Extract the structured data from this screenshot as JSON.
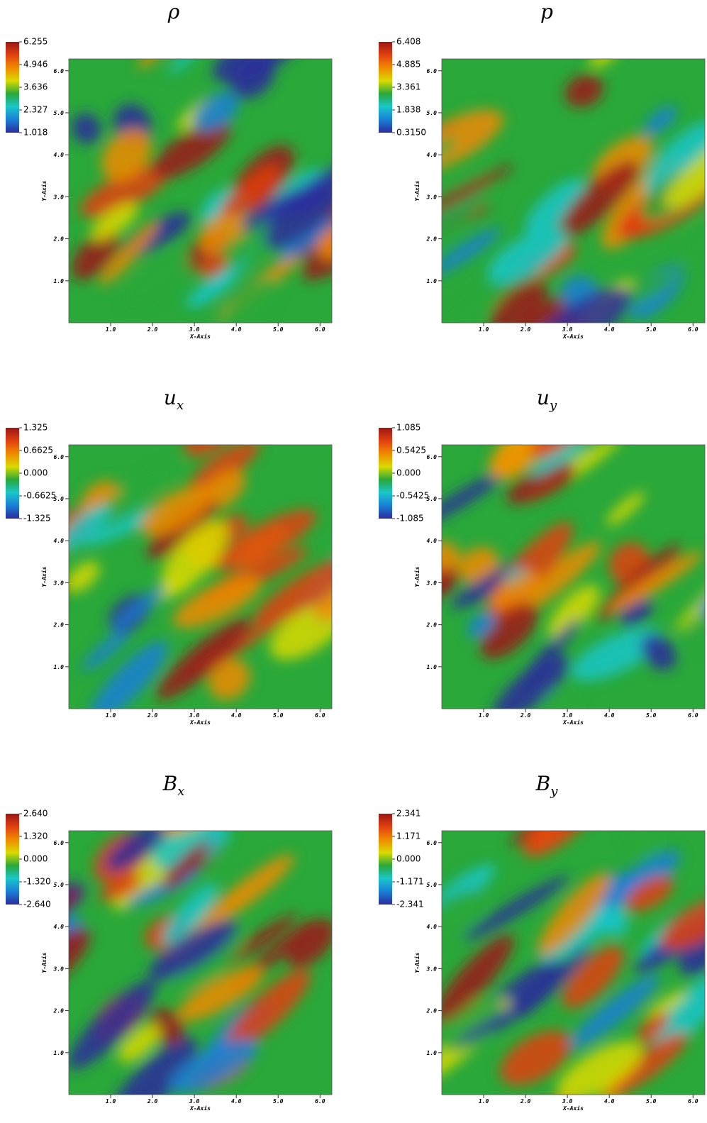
{
  "chart_data": [
    {
      "type": "heatmap",
      "title": "ρ",
      "colorbar": {
        "clim": [
          1.018,
          6.255
        ],
        "ticks": [
          6.255,
          4.946,
          3.636,
          2.327,
          1.018
        ]
      },
      "xlabel": "X-Axis",
      "ylabel": "Y-Axis",
      "xlim": [
        0,
        6.283
      ],
      "ylim": [
        0,
        6.283
      ],
      "xticks": [
        {
          "value": 1,
          "label": "1.0"
        },
        {
          "value": 2,
          "label": "2.0"
        },
        {
          "value": 3,
          "label": "3.0"
        },
        {
          "value": 4,
          "label": "4.0"
        },
        {
          "value": 5,
          "label": "5.0"
        },
        {
          "value": 6,
          "label": "6.0"
        }
      ],
      "yticks": [
        {
          "value": 1,
          "label": "1.0"
        },
        {
          "value": 2,
          "label": "2.0"
        },
        {
          "value": 3,
          "label": "3.0"
        },
        {
          "value": 4,
          "label": "4.0"
        },
        {
          "value": 5,
          "label": "5.0"
        },
        {
          "value": 6,
          "label": "6.0"
        }
      ],
      "colormap": [
        "#2c2c9c",
        "#1a7fd6",
        "#19c6c9",
        "#2aa83a",
        "#d9d900",
        "#f08a00",
        "#e04010",
        "#9c1616"
      ]
    },
    {
      "type": "heatmap",
      "title": "p",
      "colorbar": {
        "clim": [
          0.315,
          6.408
        ],
        "ticks": [
          6.408,
          4.885,
          3.361,
          1.838,
          {
            "value": 0.315,
            "label": "0.3150"
          }
        ]
      },
      "xlabel": "X-Axis",
      "ylabel": "Y-Axis",
      "xlim": [
        0,
        6.283
      ],
      "ylim": [
        0,
        6.283
      ],
      "xticks": [
        {
          "value": 1,
          "label": "1.0"
        },
        {
          "value": 2,
          "label": "2.0"
        },
        {
          "value": 3,
          "label": "3.0"
        },
        {
          "value": 4,
          "label": "4.0"
        },
        {
          "value": 5,
          "label": "5.0"
        },
        {
          "value": 6,
          "label": "6.0"
        }
      ],
      "yticks": [
        {
          "value": 1,
          "label": "1.0"
        },
        {
          "value": 2,
          "label": "2.0"
        },
        {
          "value": 3,
          "label": "3.0"
        },
        {
          "value": 4,
          "label": "4.0"
        },
        {
          "value": 5,
          "label": "5.0"
        },
        {
          "value": 6,
          "label": "6.0"
        }
      ],
      "colormap": [
        "#2c2c9c",
        "#1a7fd6",
        "#19c6c9",
        "#2aa83a",
        "#d9d900",
        "#f08a00",
        "#e04010",
        "#9c1616"
      ]
    },
    {
      "type": "heatmap",
      "title": "u",
      "title_subscript": "x",
      "colorbar": {
        "clim": [
          -1.325,
          1.325
        ],
        "ticks": [
          1.325,
          0.6625,
          {
            "value": 0,
            "label": "0.000"
          },
          -0.6625,
          -1.325
        ]
      },
      "xlabel": "X-Axis",
      "ylabel": "Y-Axis",
      "xlim": [
        0,
        6.283
      ],
      "ylim": [
        0,
        6.283
      ],
      "xticks": [
        {
          "value": 1,
          "label": "1.0"
        },
        {
          "value": 2,
          "label": "2.0"
        },
        {
          "value": 3,
          "label": "3.0"
        },
        {
          "value": 4,
          "label": "4.0"
        },
        {
          "value": 5,
          "label": "5.0"
        },
        {
          "value": 6,
          "label": "6.0"
        }
      ],
      "yticks": [
        {
          "value": 1,
          "label": "1.0"
        },
        {
          "value": 2,
          "label": "2.0"
        },
        {
          "value": 3,
          "label": "3.0"
        },
        {
          "value": 4,
          "label": "4.0"
        },
        {
          "value": 5,
          "label": "5.0"
        },
        {
          "value": 6,
          "label": "6.0"
        }
      ],
      "colormap": [
        "#2c2c9c",
        "#1a7fd6",
        "#19c6c9",
        "#2aa83a",
        "#d9d900",
        "#f08a00",
        "#e04010",
        "#9c1616"
      ]
    },
    {
      "type": "heatmap",
      "title": "u",
      "title_subscript": "y",
      "colorbar": {
        "clim": [
          -1.085,
          1.085
        ],
        "ticks": [
          1.085,
          0.5425,
          {
            "value": 0,
            "label": "0.000"
          },
          -0.5425,
          -1.085
        ]
      },
      "xlabel": "X-Axis",
      "ylabel": "Y-Axis",
      "xlim": [
        0,
        6.283
      ],
      "ylim": [
        0,
        6.283
      ],
      "xticks": [
        {
          "value": 1,
          "label": "1.0"
        },
        {
          "value": 2,
          "label": "2.0"
        },
        {
          "value": 3,
          "label": "3.0"
        },
        {
          "value": 4,
          "label": "4.0"
        },
        {
          "value": 5,
          "label": "5.0"
        },
        {
          "value": 6,
          "label": "6.0"
        }
      ],
      "yticks": [
        {
          "value": 1,
          "label": "1.0"
        },
        {
          "value": 2,
          "label": "2.0"
        },
        {
          "value": 3,
          "label": "3.0"
        },
        {
          "value": 4,
          "label": "4.0"
        },
        {
          "value": 5,
          "label": "5.0"
        },
        {
          "value": 6,
          "label": "6.0"
        }
      ],
      "colormap": [
        "#2c2c9c",
        "#1a7fd6",
        "#19c6c9",
        "#2aa83a",
        "#d9d900",
        "#f08a00",
        "#e04010",
        "#9c1616"
      ]
    },
    {
      "type": "heatmap",
      "title": "B",
      "title_subscript": "x",
      "colorbar": {
        "clim": [
          -2.64,
          2.64
        ],
        "ticks": [
          {
            "value": 2.64,
            "label": "2.640"
          },
          {
            "value": 1.32,
            "label": "1.320"
          },
          {
            "value": 0,
            "label": "0.000"
          },
          {
            "value": -1.32,
            "label": "-1.320"
          },
          {
            "value": -2.64,
            "label": "-2.640"
          }
        ]
      },
      "xlabel": "X-Axis",
      "ylabel": "Y-Axis",
      "xlim": [
        0,
        6.283
      ],
      "ylim": [
        0,
        6.283
      ],
      "xticks": [
        {
          "value": 1,
          "label": "1.0"
        },
        {
          "value": 2,
          "label": "2.0"
        },
        {
          "value": 3,
          "label": "3.0"
        },
        {
          "value": 4,
          "label": "4.0"
        },
        {
          "value": 5,
          "label": "5.0"
        },
        {
          "value": 6,
          "label": "6.0"
        }
      ],
      "yticks": [
        {
          "value": 1,
          "label": "1.0"
        },
        {
          "value": 2,
          "label": "2.0"
        },
        {
          "value": 3,
          "label": "3.0"
        },
        {
          "value": 4,
          "label": "4.0"
        },
        {
          "value": 5,
          "label": "5.0"
        },
        {
          "value": 6,
          "label": "6.0"
        }
      ],
      "colormap": [
        "#2c2c9c",
        "#1a7fd6",
        "#19c6c9",
        "#2aa83a",
        "#d9d900",
        "#f08a00",
        "#e04010",
        "#9c1616"
      ]
    },
    {
      "type": "heatmap",
      "title": "B",
      "title_subscript": "y",
      "colorbar": {
        "clim": [
          -2.341,
          2.341
        ],
        "ticks": [
          2.341,
          1.171,
          {
            "value": 0,
            "label": "0.000"
          },
          -1.171,
          -2.341
        ]
      },
      "xlabel": "X-Axis",
      "ylabel": "Y-Axis",
      "xlim": [
        0,
        6.283
      ],
      "ylim": [
        0,
        6.283
      ],
      "xticks": [
        {
          "value": 1,
          "label": "1.0"
        },
        {
          "value": 2,
          "label": "2.0"
        },
        {
          "value": 3,
          "label": "3.0"
        },
        {
          "value": 4,
          "label": "4.0"
        },
        {
          "value": 5,
          "label": "5.0"
        },
        {
          "value": 6,
          "label": "6.0"
        }
      ],
      "yticks": [
        {
          "value": 1,
          "label": "1.0"
        },
        {
          "value": 2,
          "label": "2.0"
        },
        {
          "value": 3,
          "label": "3.0"
        },
        {
          "value": 4,
          "label": "4.0"
        },
        {
          "value": 5,
          "label": "5.0"
        },
        {
          "value": 6,
          "label": "6.0"
        }
      ],
      "colormap": [
        "#2c2c9c",
        "#1a7fd6",
        "#19c6c9",
        "#2aa83a",
        "#d9d900",
        "#f08a00",
        "#e04010",
        "#9c1616"
      ]
    }
  ]
}
